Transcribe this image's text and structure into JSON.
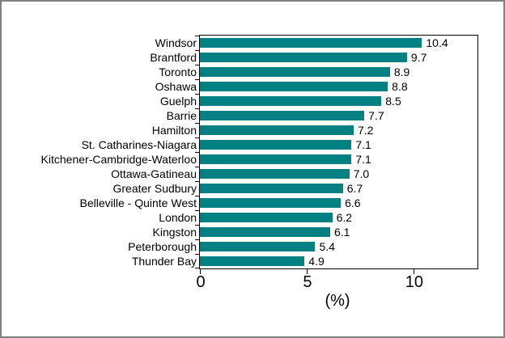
{
  "chart_data": {
    "type": "bar",
    "orientation": "horizontal",
    "categories": [
      "Windsor",
      "Brantford",
      "Toronto",
      "Oshawa",
      "Guelph",
      "Barrie",
      "Hamilton",
      "St. Catharines-Niagara",
      "Kitchener-Cambridge-Waterloo",
      "Ottawa-Gatineau",
      "Greater Sudbury",
      "Belleville - Quinte West",
      "London",
      "Kingston",
      "Peterborough",
      "Thunder Bay"
    ],
    "values": [
      10.4,
      9.7,
      8.9,
      8.8,
      8.5,
      7.7,
      7.2,
      7.1,
      7.1,
      7.0,
      6.7,
      6.6,
      6.2,
      6.1,
      5.4,
      4.9
    ],
    "value_labels": [
      "10.4",
      "9.7",
      "8.9",
      "8.8",
      "8.5",
      "7.7",
      "7.2",
      "7.1",
      "7.1",
      "7.0",
      "6.7",
      "6.6",
      "6.2",
      "6.1",
      "5.4",
      "4.9"
    ],
    "title": "",
    "xlabel": "(%)",
    "ylabel": "",
    "x_ticks": [
      0,
      5,
      10
    ],
    "x_tick_labels": [
      "0",
      "5",
      "10"
    ],
    "xlim": [
      0,
      13
    ],
    "grid": false,
    "legend": false,
    "bar_color": "#008080",
    "axis_color": "#000000",
    "text_color": "#000000",
    "frame_border_color": "#7f7f7f",
    "background_color": "#ffffff"
  }
}
